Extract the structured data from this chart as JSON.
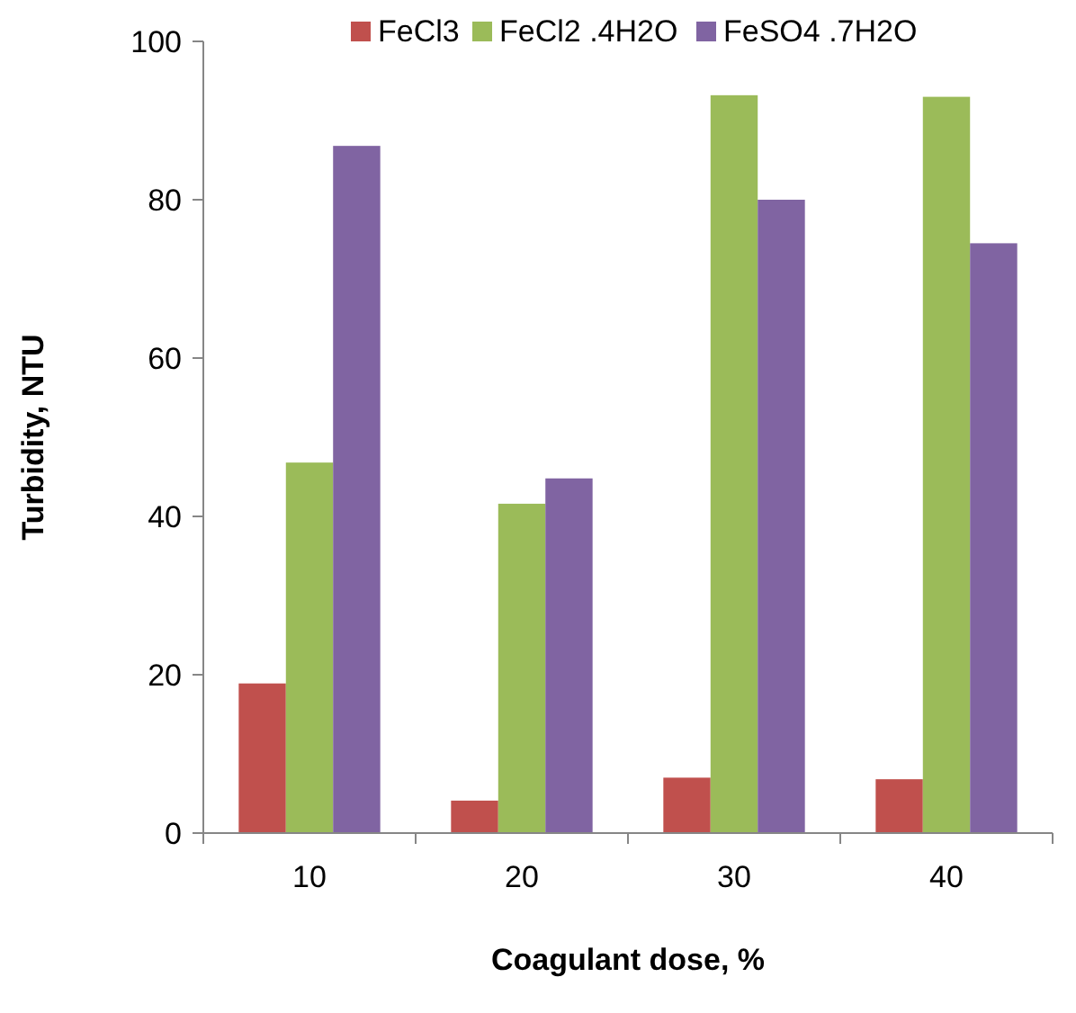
{
  "chart_data": {
    "type": "bar",
    "xlabel": "Coagulant dose, %",
    "ylabel": "Turbidity, NTU",
    "categories": [
      "10",
      "20",
      "30",
      "40"
    ],
    "series": [
      {
        "name": "FeCl3",
        "color": "#c0504d",
        "values": [
          18.9,
          4.1,
          7.0,
          6.8
        ]
      },
      {
        "name": "FeCl2 .4H2O",
        "color": "#9bbb59",
        "values": [
          46.8,
          41.6,
          93.2,
          93.0
        ]
      },
      {
        "name": "FeSO4 .7H2O",
        "color": "#8064a2",
        "values": [
          86.8,
          44.8,
          80.0,
          74.5
        ]
      }
    ],
    "ylim": [
      0,
      100
    ],
    "yticks": [
      0,
      20,
      40,
      60,
      80,
      100
    ],
    "grid": false,
    "legend": "top"
  }
}
